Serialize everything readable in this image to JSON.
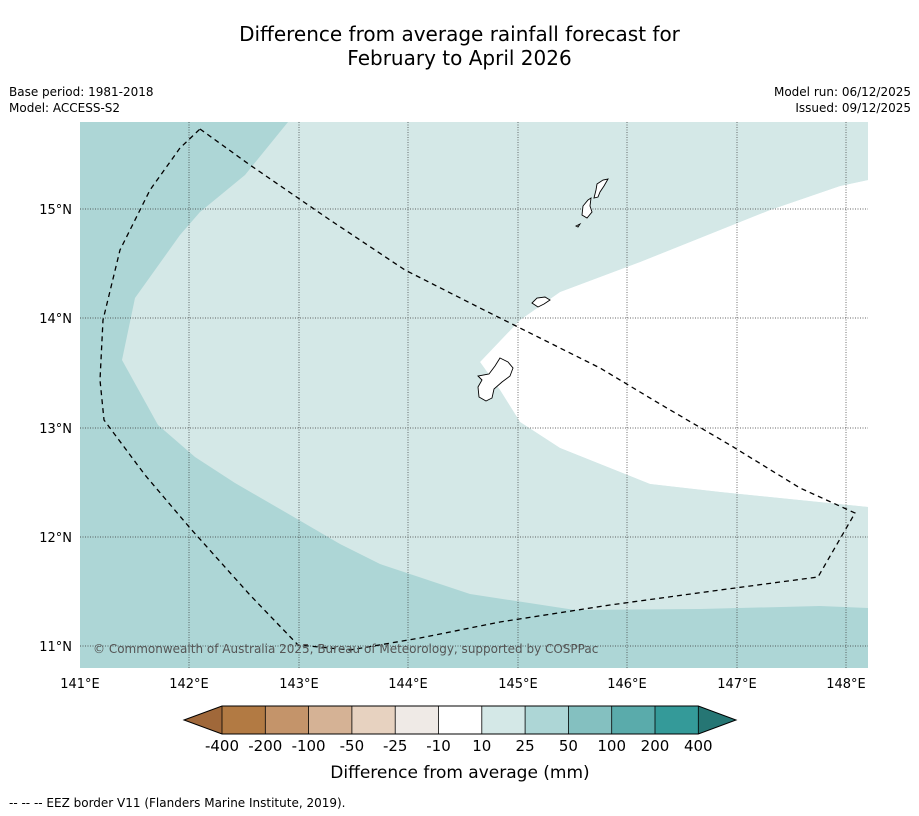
{
  "title": {
    "line1": "Difference from average rainfall forecast for",
    "line2": "February to April 2026"
  },
  "meta": {
    "base_period": "Base period: 1981-2018",
    "model": "Model: ACCESS-S2",
    "model_run": "Model run: 06/12/2025",
    "issued": "Issued: 09/12/2025"
  },
  "map": {
    "lat_labels": [
      "15°N",
      "14°N",
      "13°N",
      "12°N",
      "11°N"
    ],
    "lon_labels": [
      "141°E",
      "142°E",
      "143°E",
      "144°E",
      "145°E",
      "146°E",
      "147°E",
      "148°E"
    ],
    "copyright": "© Commonwealth of Australia 2025, Bureau of Meteorology, supported by COSPPac"
  },
  "colorbar": {
    "title": "Difference from average (mm)",
    "ticks": [
      "-400",
      "-200",
      "-100",
      "-50",
      "-25",
      "-10",
      "10",
      "25",
      "50",
      "100",
      "200",
      "400"
    ],
    "colors": {
      "below_400": "#a0683a",
      "m400_m200": "#b27a43",
      "m200_m100": "#c4946a",
      "m100_m50": "#d5b295",
      "m50_m25": "#e7d2c0",
      "m25_m10": "#efeae6",
      "m10_p10": "#ffffff",
      "p10_p25": "#d4e8e7",
      "p25_p50": "#add6d6",
      "p50_p100": "#84c0c0",
      "p100_p200": "#5aabab",
      "p200_p400": "#349a99",
      "above_400": "#267674"
    }
  },
  "footnote": "-- -- -- EEZ border V11 (Flanders Marine Institute, 2019)."
}
